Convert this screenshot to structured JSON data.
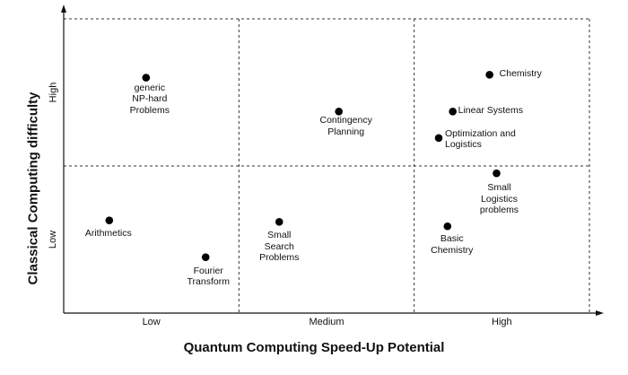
{
  "chart_data": {
    "type": "scatter",
    "xlabel": "Quantum Computing Speed-Up Potential",
    "ylabel": "Classical Computing difficulty",
    "x_categories": [
      "Low",
      "Medium",
      "High"
    ],
    "y_categories": [
      "Low",
      "High"
    ],
    "xlim": [
      0,
      3
    ],
    "ylim": [
      0,
      2
    ],
    "grid": "dashed",
    "points": [
      {
        "label": "generic NP-hard Problems",
        "x": 0.47,
        "y": 1.6
      },
      {
        "label": "Contingency Planning",
        "x": 1.57,
        "y": 1.37
      },
      {
        "label": "Chemistry",
        "x": 2.43,
        "y": 1.62
      },
      {
        "label": "Linear Systems",
        "x": 2.22,
        "y": 1.37
      },
      {
        "label": "Optimization and Logistics",
        "x": 2.14,
        "y": 1.19
      },
      {
        "label": "Small Logistics problems",
        "x": 2.47,
        "y": 0.95
      },
      {
        "label": "Arithmetics",
        "x": 0.26,
        "y": 0.63
      },
      {
        "label": "Small Search Problems",
        "x": 1.23,
        "y": 0.62
      },
      {
        "label": "Basic Chemistry",
        "x": 2.19,
        "y": 0.59
      },
      {
        "label": "Fourier Transform",
        "x": 0.81,
        "y": 0.38
      }
    ]
  }
}
